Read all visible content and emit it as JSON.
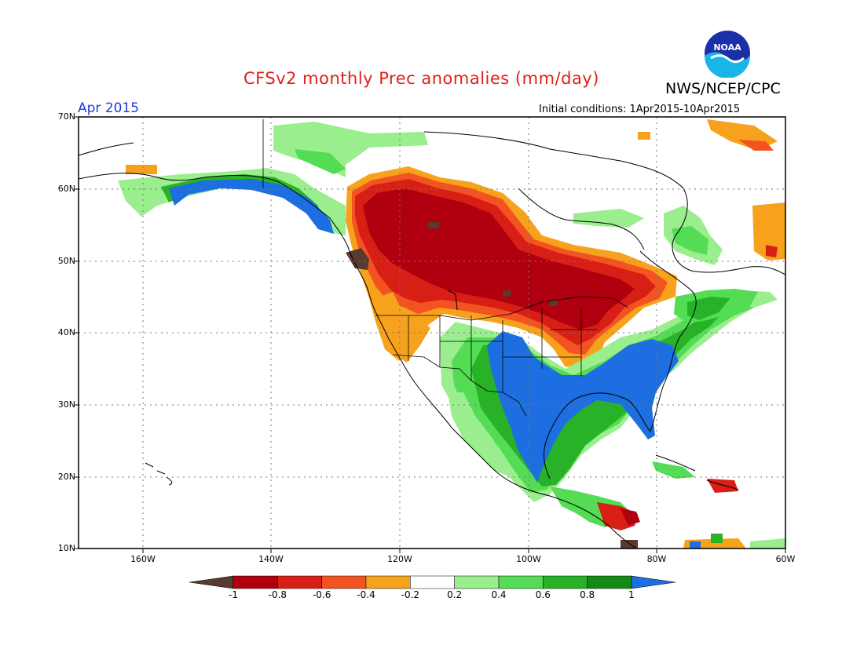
{
  "title": "CFSv2 monthly Prec anomalies (mm/day)",
  "org": "NWS/NCEP/CPC",
  "logo_text": "NOAA",
  "valid_month": "Apr 2015",
  "initial_conditions": "Initial conditions:  1Apr2015-10Apr2015",
  "lat_labels": [
    "70N",
    "60N",
    "50N",
    "40N",
    "30N",
    "20N",
    "10N"
  ],
  "lon_labels": [
    "160W",
    "140W",
    "120W",
    "100W",
    "80W",
    "60W"
  ],
  "colorbar": {
    "labels": [
      "-1",
      "-0.8",
      "-0.6",
      "-0.4",
      "-0.2",
      "0.2",
      "0.4",
      "0.6",
      "0.8",
      "1"
    ],
    "colors": [
      "#5a3a2c",
      "#b0000f",
      "#d71f16",
      "#f35320",
      "#f7a21c",
      "#ffffff",
      "#9aee8e",
      "#54dc54",
      "#27b227",
      "#138a13",
      "#1d6ee0"
    ]
  },
  "colors": {
    "title": "#e0201a",
    "month": "#1a3ee0",
    "grid": "#777777"
  }
}
